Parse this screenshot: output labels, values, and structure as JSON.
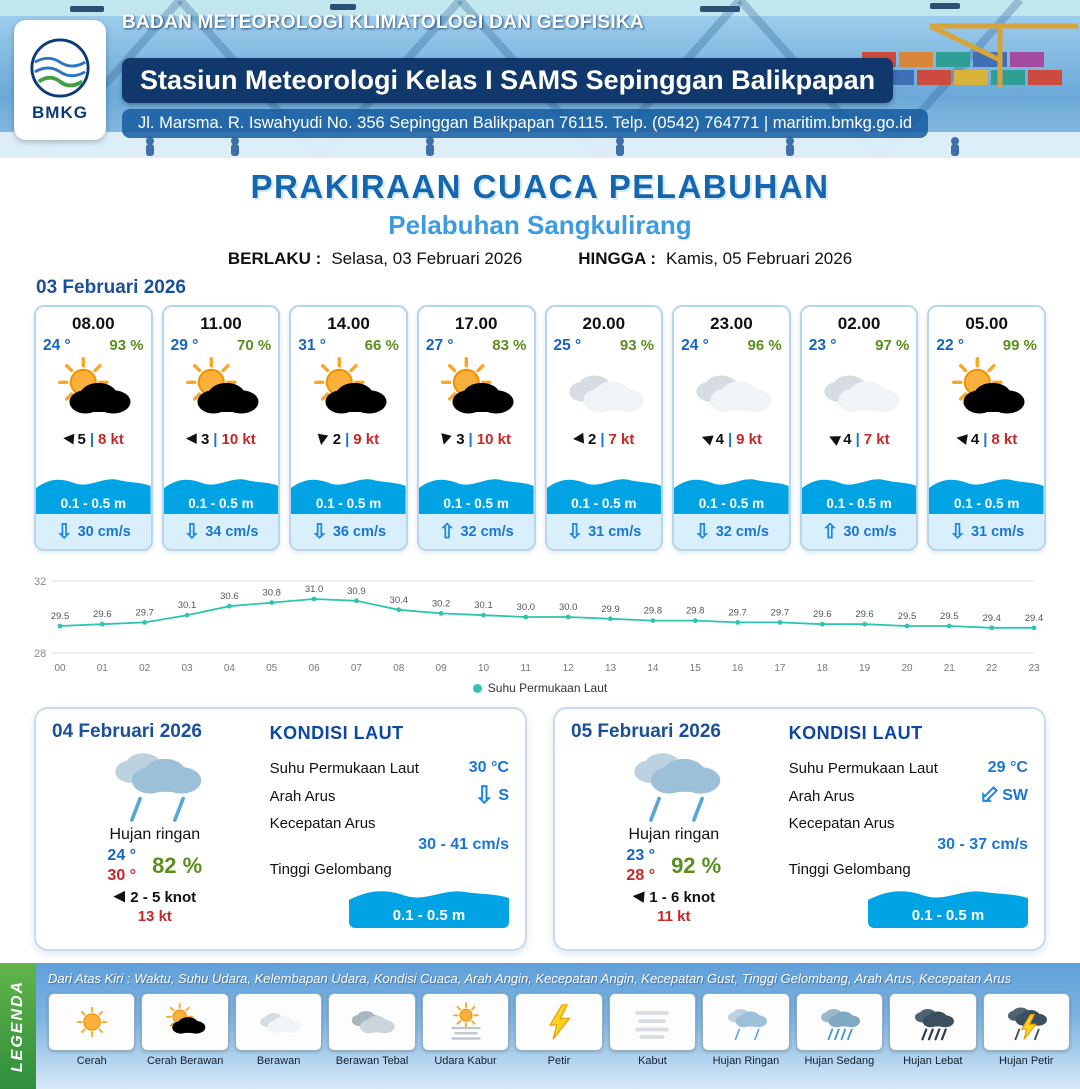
{
  "header": {
    "logo_text": "BMKG",
    "org_name": "BADAN METEOROLOGI KLIMATOLOGI DAN GEOFISIKA",
    "station_name": "Stasiun Meteorologi Kelas I SAMS Sepinggan Balikpapan",
    "address_line": "Jl. Marsma. R. Iswahyudi No. 356 Sepinggan Balikpapan 76115. Telp. (0542) 764771 | maritim.bmkg.go.id"
  },
  "title_block": {
    "title": "PRAKIRAAN CUACA PELABUHAN",
    "subtitle": "Pelabuhan Sangkulirang",
    "valid_from_label": "BERLAKU :",
    "valid_from": "Selasa, 03 Februari 2026",
    "valid_to_label": "HINGGA :",
    "valid_to": "Kamis, 05 Februari 2026"
  },
  "ui": {
    "separator": "|"
  },
  "day1": {
    "date": "03 Februari 2026",
    "cards": [
      {
        "time": "08.00",
        "temp": "24 °",
        "rh": "93 %",
        "icon": "cerah_berawan",
        "wind_deg": 185,
        "wind": "5",
        "gust": "8 kt",
        "wave": "0.1 - 0.5 m",
        "current_dir": "down",
        "current": "30 cm/s"
      },
      {
        "time": "11.00",
        "temp": "29 °",
        "rh": "70 %",
        "icon": "cerah_berawan",
        "wind_deg": 180,
        "wind": "3",
        "gust": "10 kt",
        "wave": "0.1 - 0.5 m",
        "current_dir": "down",
        "current": "34 cm/s"
      },
      {
        "time": "14.00",
        "temp": "31 °",
        "rh": "66 %",
        "icon": "cerah_berawan",
        "wind_deg": 100,
        "wind": "2",
        "gust": "9 kt",
        "wave": "0.1 - 0.5 m",
        "current_dir": "down",
        "current": "36 cm/s"
      },
      {
        "time": "17.00",
        "temp": "27 °",
        "rh": "83 %",
        "icon": "cerah_berawan",
        "wind_deg": 105,
        "wind": "3",
        "gust": "10 kt",
        "wave": "0.1 - 0.5 m",
        "current_dir": "up",
        "current": "32 cm/s"
      },
      {
        "time": "20.00",
        "temp": "25 °",
        "rh": "93 %",
        "icon": "berawan",
        "wind_deg": 175,
        "wind": "2",
        "gust": "7 kt",
        "wave": "0.1 - 0.5 m",
        "current_dir": "down",
        "current": "31 cm/s"
      },
      {
        "time": "23.00",
        "temp": "24 °",
        "rh": "96 %",
        "icon": "berawan",
        "wind_deg": 200,
        "wind": "4",
        "gust": "9 kt",
        "wave": "0.1 - 0.5 m",
        "current_dir": "down",
        "current": "32 cm/s"
      },
      {
        "time": "02.00",
        "temp": "23 °",
        "rh": "97 %",
        "icon": "berawan",
        "wind_deg": 205,
        "wind": "4",
        "gust": "7 kt",
        "wave": "0.1 - 0.5 m",
        "current_dir": "up",
        "current": "30 cm/s"
      },
      {
        "time": "05.00",
        "temp": "22 °",
        "rh": "99 %",
        "icon": "cerah_berawan",
        "wind_deg": 190,
        "wind": "4",
        "gust": "8 kt",
        "wave": "0.1 - 0.5 m",
        "current_dir": "down",
        "current": "31 cm/s"
      }
    ]
  },
  "chart_data": {
    "type": "line",
    "title": "Suhu Permukaan Laut",
    "legend_label": "Suhu Permukaan Laut",
    "x": [
      "00",
      "01",
      "02",
      "03",
      "04",
      "05",
      "06",
      "07",
      "08",
      "09",
      "10",
      "11",
      "12",
      "13",
      "14",
      "15",
      "16",
      "17",
      "18",
      "19",
      "20",
      "21",
      "22",
      "23"
    ],
    "values": [
      29.5,
      29.6,
      29.7,
      30.1,
      30.6,
      30.8,
      31.0,
      30.9,
      30.4,
      30.2,
      30.1,
      30.0,
      30.0,
      29.9,
      29.8,
      29.8,
      29.7,
      29.7,
      29.6,
      29.6,
      29.5,
      29.5,
      29.4,
      29.4
    ],
    "ylim": [
      28,
      32
    ],
    "grid": true,
    "legend_position": "bottom",
    "line_color": "#2ec4b0"
  },
  "day_cards": [
    {
      "date": "04 Februari 2026",
      "icon": "hujan_ringan",
      "weather": "Hujan ringan",
      "temp_min": "24 °",
      "temp_max": "30 °",
      "rh": "82 %",
      "wind_deg": 180,
      "wind_range": "2 - 5 knot",
      "gust": "13 kt",
      "sea": {
        "title": "KONDISI LAUT",
        "sst_label": "Suhu Permukaan Laut",
        "sst": "30 °C",
        "dir_label": "Arah Arus",
        "dir_arrow": "down",
        "dir": "S",
        "speed_label": "Kecepatan Arus",
        "speed": "30 - 41 cm/s",
        "wave_label": "Tinggi Gelombang",
        "wave": "0.1 - 0.5 m"
      }
    },
    {
      "date": "05 Februari 2026",
      "icon": "hujan_ringan",
      "weather": "Hujan ringan",
      "temp_min": "23 °",
      "temp_max": "28 °",
      "rh": "92 %",
      "wind_deg": 185,
      "wind_range": "1 - 6 knot",
      "gust": "11 kt",
      "sea": {
        "title": "KONDISI LAUT",
        "sst_label": "Suhu Permukaan Laut",
        "sst": "29 °C",
        "dir_label": "Arah Arus",
        "dir_arrow": "down-left",
        "dir": "SW",
        "speed_label": "Kecepatan Arus",
        "speed": "30 - 37 cm/s",
        "wave_label": "Tinggi Gelombang",
        "wave": "0.1 - 0.5 m"
      }
    }
  ],
  "legend": {
    "title": "LEGENDA",
    "description": "Dari Atas Kiri : Waktu, Suhu Udara, Kelembapan Udara, Kondisi Cuaca, Arah Angin, Kecepatan Angin, Kecepatan Gust, Tinggi Gelombang, Arah Arus, Kecepatan Arus",
    "items": [
      {
        "label": "Cerah",
        "icon": "cerah"
      },
      {
        "label": "Cerah Berawan",
        "icon": "cerah_berawan"
      },
      {
        "label": "Berawan",
        "icon": "berawan"
      },
      {
        "label": "Berawan Tebal",
        "icon": "berawan_tebal"
      },
      {
        "label": "Udara Kabur",
        "icon": "udara_kabur"
      },
      {
        "label": "Petir",
        "icon": "petir"
      },
      {
        "label": "Kabut",
        "icon": "kabut"
      },
      {
        "label": "Hujan Ringan",
        "icon": "hujan_ringan"
      },
      {
        "label": "Hujan Sedang",
        "icon": "hujan_sedang"
      },
      {
        "label": "Hujan Lebat",
        "icon": "hujan_lebat"
      },
      {
        "label": "Hujan Petir",
        "icon": "hujan_petir"
      }
    ]
  },
  "colors": {
    "accent_blue": "#1565c0",
    "humidity_green": "#5a8f1f",
    "gust_red": "#c62828",
    "wave_blue": "#00a3e4",
    "sst_line_teal": "#2ec4b0",
    "header_navy": "#10386c"
  }
}
